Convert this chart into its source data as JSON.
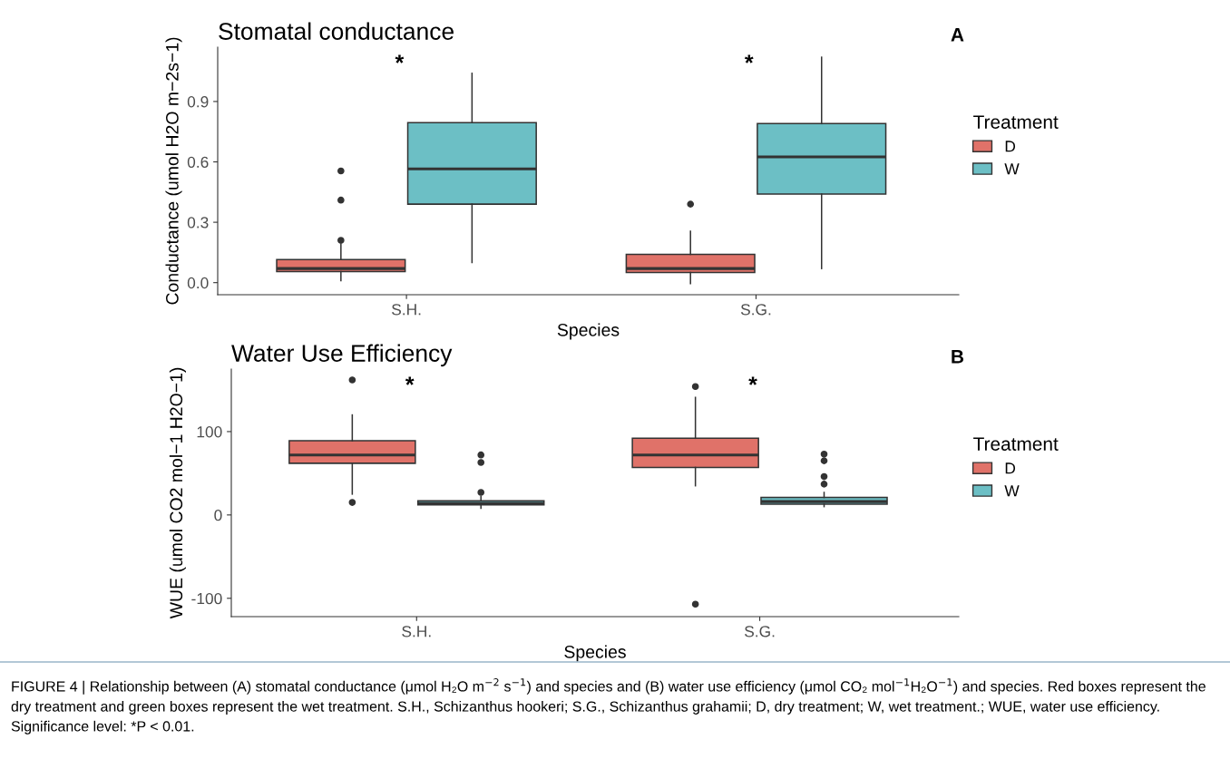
{
  "chart_data": [
    {
      "type": "box",
      "title": "Stomatal conductance",
      "xlabel": "Species",
      "ylabel": "Conductance (umol H2O m−2s−1)",
      "legend_title": "Treatment",
      "legend": "right",
      "grid": false,
      "categories": [
        "S.H.",
        "S.G."
      ],
      "ylim": [
        -0.06,
        1.17
      ],
      "yticks": [
        {
          "value": 0,
          "label": "0.0"
        },
        {
          "value": 0.3,
          "label": "0.3"
        },
        {
          "value": 0.6,
          "label": "0.6"
        },
        {
          "value": 0.9,
          "label": "0.9"
        }
      ],
      "series": [
        {
          "name": "D",
          "color": "#e07269",
          "boxes": [
            {
              "low": 0.01,
              "q1": 0.055,
              "median": 0.07,
              "q3": 0.115,
              "high": 0.19,
              "outliers": [
                0.21,
                0.41,
                0.555
              ]
            },
            {
              "low": -0.005,
              "q1": 0.05,
              "median": 0.07,
              "q3": 0.14,
              "high": 0.255,
              "outliers": [
                0.39
              ]
            }
          ]
        },
        {
          "name": "W",
          "color": "#6cbfc5",
          "boxes": [
            {
              "low": 0.1,
              "q1": 0.39,
              "median": 0.565,
              "q3": 0.795,
              "high": 1.04
            },
            {
              "low": 0.07,
              "q1": 0.44,
              "median": 0.625,
              "q3": 0.79,
              "high": 1.12
            }
          ]
        }
      ],
      "annotations": [
        "A",
        "*",
        "*"
      ]
    },
    {
      "type": "box",
      "title": "Water Use Efficiency",
      "xlabel": "Species",
      "ylabel": "WUE (umol CO2 mol−1 H2O−1)",
      "legend_title": "Treatment",
      "legend": "right",
      "grid": false,
      "categories": [
        "S.H.",
        "S.G."
      ],
      "ylim": [
        -122,
        175
      ],
      "yticks": [
        -100,
        0,
        100
      ],
      "series": [
        {
          "name": "D",
          "color": "#e07269",
          "boxes": [
            {
              "low": 25,
              "q1": 62,
              "median": 72,
              "q3": 89,
              "high": 120,
              "outliers": [
                15,
                162
              ]
            },
            {
              "low": 35,
              "q1": 57,
              "median": 72,
              "q3": 92,
              "high": 141,
              "outliers": [
                154,
                -107
              ]
            }
          ]
        },
        {
          "name": "W",
          "color": "#6cbfc5",
          "boxes": [
            {
              "low": 8,
              "q1": 12,
              "median": 14,
              "q3": 17,
              "high": 22,
              "outliers": [
                27,
                63,
                72
              ]
            },
            {
              "low": 10,
              "q1": 13,
              "median": 16,
              "q3": 21,
              "high": 27,
              "outliers": [
                37,
                46,
                65,
                73
              ]
            }
          ]
        }
      ],
      "annotations": [
        "B",
        "*",
        "*",
        "FIGURE 4 | Relationship between (A) stomatal conductance (μmol H₂O m$^{−2}$ s$^{−1}$) and species and (B) water use efficiency (μmol CO₂ mol$^{−1}$H₂O$^{−1}$) and species. Red boxes represent the dry treatment and green boxes represent the wet treatment. S.H., Schizanthus hookeri; S.G., Schizanthus grahamii; D, dry treatment; W, wet treatment.; WUE, water use efficiency. Significance level: *P < 0.01."
      ]
    }
  ]
}
